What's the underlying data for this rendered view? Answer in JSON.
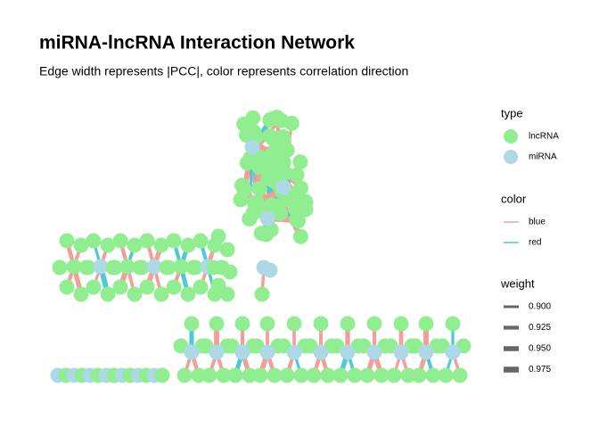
{
  "header": {
    "title": "miRNA-lncRNA Interaction Network",
    "subtitle": "Edge width represents |PCC|, color represents correlation direction"
  },
  "legend": {
    "type": {
      "title": "type",
      "items": [
        {
          "label": "lncRNA",
          "color": "#90ee90"
        },
        {
          "label": "miRNA",
          "color": "#add8e6"
        }
      ]
    },
    "color": {
      "title": "color",
      "items": [
        {
          "label": "blue",
          "color": "#f59e99"
        },
        {
          "label": "red",
          "color": "#4fc8d8"
        }
      ]
    },
    "weight": {
      "title": "weight",
      "items": [
        "0.900",
        "0.925",
        "0.950",
        "0.975"
      ]
    }
  }
}
